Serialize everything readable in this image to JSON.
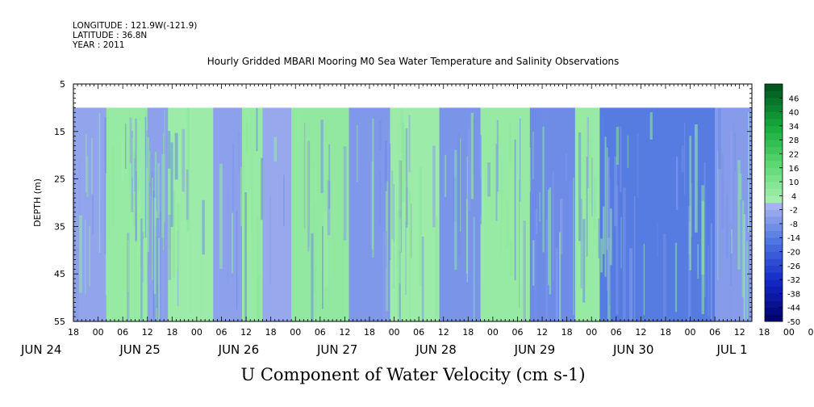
{
  "header": {
    "longitude": "LONGITUDE : 121.9W(-121.9)",
    "latitude": "LATITUDE : 36.8N",
    "year": "YEAR : 2011"
  },
  "title": "Hourly Gridded MBARI Mooring M0 Sea Water Temperature and Salinity Observations",
  "bottom_title": "U Component of Water Velocity (cm s-1)",
  "chart_data": {
    "type": "heatmap",
    "title": "Hourly Gridded MBARI Mooring M0 Sea Water Temperature and Salinity Observations",
    "variable": "U Component of Water Velocity (cm s-1)",
    "ylabel": "DEPTH (m)",
    "y_axis": {
      "range": [
        5,
        55
      ],
      "inverted": true,
      "ticks": [
        5,
        15,
        25,
        35,
        45,
        55
      ]
    },
    "x_axis": {
      "hour_ticks": [
        "18",
        "00",
        "06",
        "12",
        "18",
        "00",
        "06",
        "12",
        "18",
        "00",
        "06",
        "12",
        "18",
        "00",
        "06",
        "12",
        "18",
        "00",
        "06",
        "12",
        "18",
        "00",
        "06",
        "12",
        "18",
        "00",
        "06",
        "12",
        "18",
        "00",
        "06",
        "12"
      ],
      "day_labels": [
        "JUN 24",
        "JUN 25",
        "JUN 26",
        "JUN 27",
        "JUN 28",
        "JUN 29",
        "JUN 30",
        "JUL  1"
      ]
    },
    "data_extent": {
      "start": "2011-06-24T18:00",
      "end": "2011-07-01T15:00",
      "depth_min": 10,
      "depth_max": 55
    },
    "colorbar": {
      "levels": [
        -50,
        -44,
        -38,
        -32,
        -26,
        -20,
        -14,
        -8,
        -2,
        4,
        10,
        16,
        22,
        28,
        34,
        40,
        46
      ],
      "min": -50,
      "max": 52,
      "step": 3
    },
    "approx_bands": [
      {
        "start": "2011-06-24T18:00",
        "end": "2011-06-25T02:00",
        "value": -4
      },
      {
        "start": "2011-06-25T02:00",
        "end": "2011-06-25T12:00",
        "value": 5
      },
      {
        "start": "2011-06-25T12:00",
        "end": "2011-06-25T17:00",
        "value": -5
      },
      {
        "start": "2011-06-25T17:00",
        "end": "2011-06-26T04:00",
        "value": 4
      },
      {
        "start": "2011-06-26T04:00",
        "end": "2011-06-26T11:00",
        "value": -5
      },
      {
        "start": "2011-06-26T11:00",
        "end": "2011-06-26T16:00",
        "value": 5
      },
      {
        "start": "2011-06-26T16:00",
        "end": "2011-06-26T23:00",
        "value": -3
      },
      {
        "start": "2011-06-26T23:00",
        "end": "2011-06-27T13:00",
        "value": 6
      },
      {
        "start": "2011-06-27T13:00",
        "end": "2011-06-27T23:00",
        "value": -7
      },
      {
        "start": "2011-06-27T23:00",
        "end": "2011-06-28T11:00",
        "value": 4
      },
      {
        "start": "2011-06-28T11:00",
        "end": "2011-06-28T21:00",
        "value": -8
      },
      {
        "start": "2011-06-28T21:00",
        "end": "2011-06-29T09:00",
        "value": 5
      },
      {
        "start": "2011-06-29T09:00",
        "end": "2011-06-29T20:00",
        "value": -10
      },
      {
        "start": "2011-06-29T20:00",
        "end": "2011-06-30T02:00",
        "value": 5
      },
      {
        "start": "2011-06-30T02:00",
        "end": "2011-07-01T06:00",
        "value": -14
      },
      {
        "start": "2011-07-01T06:00",
        "end": "2011-07-01T15:00",
        "value": -6
      }
    ]
  },
  "colors": {
    "background": "#ffffff",
    "top_empty": "#ffffff"
  }
}
